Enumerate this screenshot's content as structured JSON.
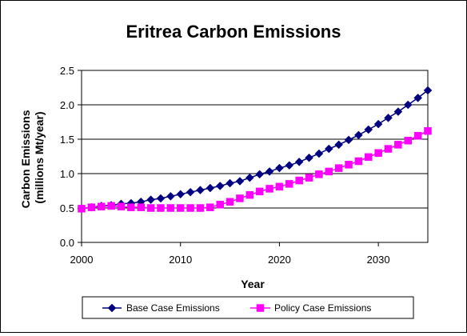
{
  "chart_data": {
    "type": "line",
    "title": "Eritrea Carbon Emissions",
    "xlabel": "Year",
    "ylabel": "Carbon Emissions (millions Mt/year)",
    "ylabel_lines": [
      "Carbon Emissions",
      "(millions Mt/year)"
    ],
    "xlim": [
      2000,
      2035
    ],
    "ylim": [
      0,
      2.5
    ],
    "x_ticks": [
      "2000",
      "2010",
      "2020",
      "2030"
    ],
    "y_ticks": [
      "0.0",
      "0.5",
      "1.0",
      "1.5",
      "2.0",
      "2.5"
    ],
    "grid": "horizontal",
    "legend_position": "bottom",
    "x": [
      2000,
      2001,
      2002,
      2003,
      2004,
      2005,
      2006,
      2007,
      2008,
      2009,
      2010,
      2011,
      2012,
      2013,
      2014,
      2015,
      2016,
      2017,
      2018,
      2019,
      2020,
      2021,
      2022,
      2023,
      2024,
      2025,
      2026,
      2027,
      2028,
      2029,
      2030,
      2031,
      2032,
      2033,
      2034,
      2035
    ],
    "series": [
      {
        "name": "Base Case Emissions",
        "color": "#000080",
        "marker": "diamond",
        "values": [
          0.49,
          0.51,
          0.53,
          0.54,
          0.56,
          0.57,
          0.59,
          0.62,
          0.64,
          0.67,
          0.7,
          0.73,
          0.76,
          0.79,
          0.82,
          0.86,
          0.89,
          0.94,
          0.99,
          1.03,
          1.08,
          1.12,
          1.17,
          1.23,
          1.29,
          1.36,
          1.42,
          1.49,
          1.56,
          1.64,
          1.72,
          1.81,
          1.9,
          2.0,
          2.1,
          2.21
        ]
      },
      {
        "name": "Policy Case Emissions",
        "color": "#FF00FF",
        "marker": "square",
        "values": [
          0.49,
          0.51,
          0.52,
          0.53,
          0.52,
          0.51,
          0.51,
          0.5,
          0.5,
          0.5,
          0.5,
          0.5,
          0.5,
          0.51,
          0.55,
          0.59,
          0.64,
          0.69,
          0.74,
          0.78,
          0.81,
          0.85,
          0.9,
          0.94,
          0.99,
          1.03,
          1.08,
          1.13,
          1.18,
          1.24,
          1.3,
          1.36,
          1.42,
          1.48,
          1.55,
          1.62
        ]
      }
    ]
  }
}
